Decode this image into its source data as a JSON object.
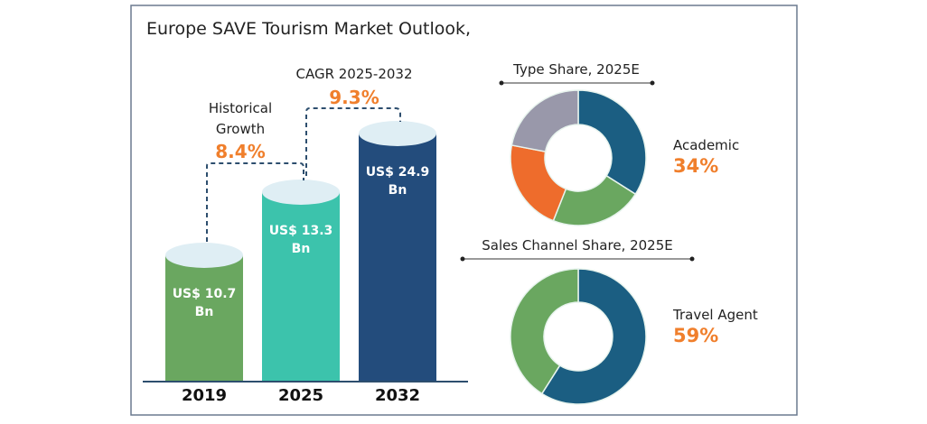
{
  "chart_data": [
    {
      "type": "bar",
      "title": "Europe SAVE Tourism Market Outlook,",
      "categories": [
        "2019",
        "2025",
        "2032"
      ],
      "values": [
        10.7,
        13.3,
        24.9
      ],
      "data_labels": [
        [
          "US$ 10.7",
          "Bn"
        ],
        [
          "US$ 13.3",
          "Bn"
        ],
        [
          "US$ 24.9",
          "Bn"
        ]
      ],
      "unit": "US$ Bn",
      "colors": [
        "#6aa760",
        "#3cc3ac",
        "#234c7c"
      ],
      "annotations": {
        "historical": {
          "label_line1": "Historical",
          "label_line2": "Growth",
          "value": "8.4%"
        },
        "cagr": {
          "label": "CAGR 2025-2032",
          "value": "9.3%"
        }
      },
      "accent_color": "#f07f2c"
    },
    {
      "type": "pie",
      "title": "Type Share, 2025E",
      "values": [
        34,
        22,
        22,
        22
      ],
      "colors": [
        "#1b5e82",
        "#6aa760",
        "#ee6c2c",
        "#9998aa"
      ],
      "highlight": {
        "label": "Academic",
        "value": "34%"
      }
    },
    {
      "type": "pie",
      "title": "Sales Channel Share, 2025E",
      "values": [
        59,
        41
      ],
      "colors": [
        "#1b5e82",
        "#6aa760"
      ],
      "highlight": {
        "label": "Travel Agent",
        "value": "59%"
      }
    }
  ]
}
